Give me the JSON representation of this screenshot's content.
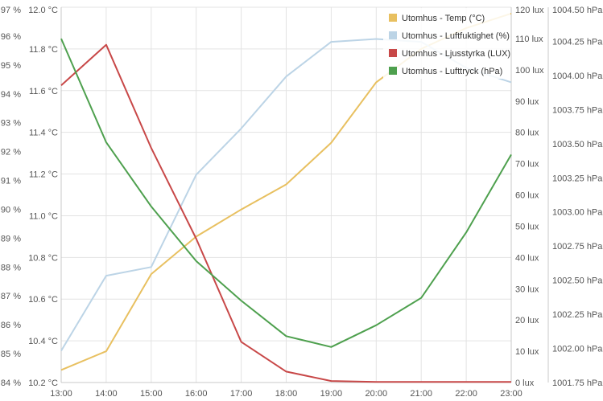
{
  "chart_data": {
    "type": "line",
    "x": [
      "13:00",
      "14:00",
      "15:00",
      "16:00",
      "17:00",
      "18:00",
      "19:00",
      "20:00",
      "21:00",
      "22:00",
      "23:00"
    ],
    "axes": {
      "humidity": {
        "ticks": [
          "84 %",
          "85 %",
          "86 %",
          "87 %",
          "88 %",
          "89 %",
          "90 %",
          "91 %",
          "92 %",
          "93 %",
          "94 %",
          "95 %",
          "96 %",
          "97 %"
        ],
        "min": 84,
        "max": 97
      },
      "temp": {
        "ticks": [
          "10.2 °C",
          "10.4 °C",
          "10.6 °C",
          "10.8 °C",
          "11.0 °C",
          "11.2 °C",
          "11.4 °C",
          "11.6 °C",
          "11.8 °C",
          "12.0 °C"
        ],
        "min": 10.2,
        "max": 12.0
      },
      "lux": {
        "ticks": [
          "0 lux",
          "10 lux",
          "20 lux",
          "30 lux",
          "40 lux",
          "50 lux",
          "60 lux",
          "70 lux",
          "80 lux",
          "90 lux",
          "100 lux",
          "110 lux",
          "120 lux"
        ],
        "min": 0,
        "max": 120
      },
      "pressure": {
        "ticks": [
          "1001.75 hPa",
          "1002.00 hPa",
          "1002.25 hPa",
          "1002.50 hPa",
          "1002.75 hPa",
          "1003.00 hPa",
          "1003.25 hPa",
          "1003.50 hPa",
          "1003.75 hPa",
          "1004.00 hPa",
          "1004.25 hPa",
          "1004.50 hPa"
        ],
        "min": 1001.75,
        "max": 1004.5
      }
    },
    "series": [
      {
        "name": "Utomhus - Temp (°C)",
        "color": "#e8c060",
        "axis": "temp",
        "values": [
          10.26,
          10.35,
          10.72,
          10.9,
          11.03,
          11.15,
          11.35,
          11.64,
          11.8,
          11.9,
          11.97
        ]
      },
      {
        "name": "Utomhus - Luftfuktighet (%)",
        "color": "#bcd4e6",
        "axis": "humidity",
        "values": [
          85.1,
          87.7,
          88.0,
          91.2,
          92.8,
          94.6,
          95.8,
          95.9,
          95.8,
          94.9,
          94.4
        ]
      },
      {
        "name": "Utomhus - Ljusstyrka (LUX)",
        "color": "#c84848",
        "axis": "lux",
        "values": [
          95,
          108,
          75,
          46,
          13,
          3.5,
          0.5,
          0.2,
          0.2,
          0.2,
          0.2
        ]
      },
      {
        "name": "Utomhus - Lufttryck (hPa)",
        "color": "#4ea04e",
        "axis": "pressure",
        "values": [
          1004.27,
          1003.51,
          1003.04,
          1002.64,
          1002.35,
          1002.09,
          1002.01,
          1002.17,
          1002.37,
          1002.85,
          1003.42
        ]
      }
    ],
    "grid": true,
    "legend_position": "top-right"
  }
}
